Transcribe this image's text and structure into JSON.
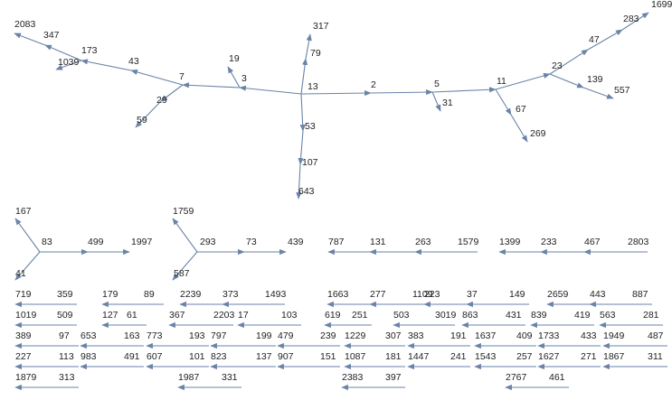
{
  "components": [
    [
      "13",
      "2",
      "5",
      "11",
      "23",
      "47",
      "283",
      "1699",
      "139",
      "557",
      "67",
      "269",
      "31",
      "79",
      "317",
      "53",
      "107",
      "643",
      "3",
      "19",
      "7",
      "29",
      "59",
      "43",
      "173",
      "1039",
      "347",
      "2083"
    ],
    [
      "83",
      "167",
      "41",
      "499",
      "1997"
    ],
    [
      "293",
      "1759",
      "587",
      "73",
      "439"
    ],
    [
      "787",
      "131",
      "263",
      "1579"
    ],
    [
      "1399",
      "233",
      "467",
      "2803"
    ],
    [
      "719",
      "359"
    ],
    [
      "179",
      "89"
    ],
    [
      "2239",
      "373",
      "1493"
    ],
    [
      "1663",
      "277",
      "1109"
    ],
    [
      "223",
      "37",
      "149"
    ],
    [
      "2659",
      "443",
      "887"
    ],
    [
      "1019",
      "509"
    ],
    [
      "127",
      "61"
    ],
    [
      "367",
      "2203"
    ],
    [
      "17",
      "103"
    ],
    [
      "619",
      "251"
    ],
    [
      "503",
      "3019"
    ],
    [
      "863",
      "431"
    ],
    [
      "839",
      "419"
    ],
    [
      "563",
      "281"
    ],
    [
      "389",
      "97"
    ],
    [
      "653",
      "163"
    ],
    [
      "773",
      "193"
    ],
    [
      "797",
      "199"
    ],
    [
      "479",
      "239"
    ],
    [
      "1229",
      "307"
    ],
    [
      "383",
      "191"
    ],
    [
      "1637",
      "409"
    ],
    [
      "1733",
      "433"
    ],
    [
      "1949",
      "487"
    ],
    [
      "227",
      "113"
    ],
    [
      "983",
      "491"
    ],
    [
      "607",
      "101"
    ],
    [
      "823",
      "137"
    ],
    [
      "907",
      "151"
    ],
    [
      "1087",
      "181"
    ],
    [
      "1447",
      "241"
    ],
    [
      "1543",
      "257"
    ],
    [
      "1627",
      "271"
    ],
    [
      "1867",
      "311"
    ],
    [
      "1879",
      "313"
    ],
    [
      "1987",
      "331"
    ],
    [
      "2383",
      "397"
    ],
    [
      "2767",
      "461"
    ]
  ]
}
